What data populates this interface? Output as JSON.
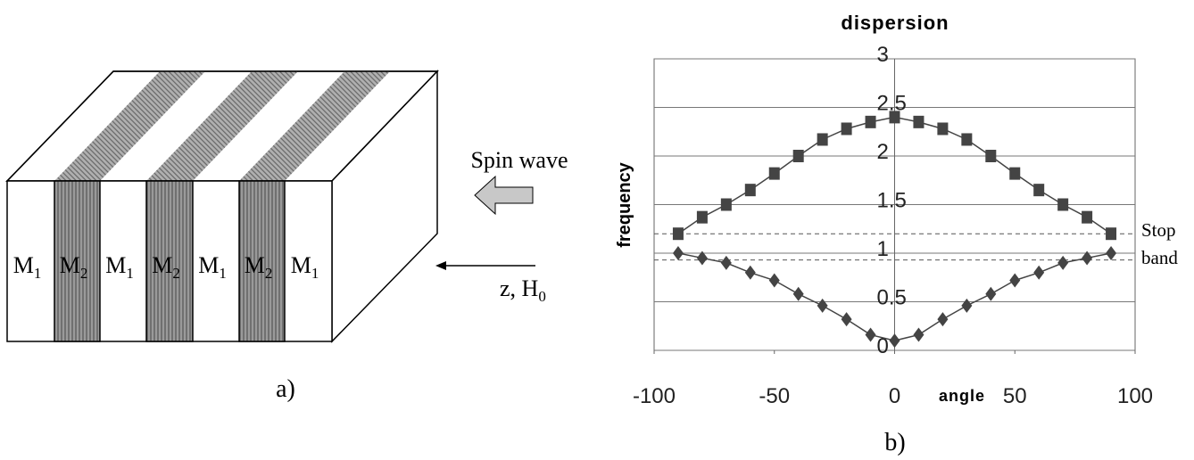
{
  "diagram": {
    "layers": [
      {
        "text": "M",
        "sub": "1"
      },
      {
        "text": "M",
        "sub": "2"
      },
      {
        "text": "M",
        "sub": "1"
      },
      {
        "text": "M",
        "sub": "2"
      },
      {
        "text": "M",
        "sub": "1"
      },
      {
        "text": "M",
        "sub": "2"
      },
      {
        "text": "M",
        "sub": "1"
      }
    ],
    "wave_label": "Spin wave",
    "field_label": {
      "text": "z, H",
      "sub": "0"
    },
    "caption": "a)"
  },
  "chart_data": {
    "type": "line",
    "title": "dispersion",
    "x_label": "angle",
    "y_label": "frequency",
    "caption": "b)",
    "x": [
      -90,
      -80,
      -70,
      -60,
      -50,
      -40,
      -30,
      -20,
      -10,
      0,
      10,
      20,
      30,
      40,
      50,
      60,
      70,
      80,
      90
    ],
    "series": [
      {
        "color": "#444444",
        "marker": "square",
        "values": [
          1.2,
          1.37,
          1.5,
          1.65,
          1.82,
          2.0,
          2.17,
          2.28,
          2.35,
          2.4,
          2.35,
          2.28,
          2.17,
          2.0,
          1.82,
          1.65,
          1.5,
          1.37,
          1.2
        ]
      },
      {
        "color": "#444444",
        "marker": "diamond",
        "values": [
          1.0,
          0.95,
          0.9,
          0.8,
          0.72,
          0.58,
          0.46,
          0.32,
          0.16,
          0.1,
          0.16,
          0.32,
          0.46,
          0.58,
          0.72,
          0.8,
          0.9,
          0.95,
          1.0
        ]
      }
    ],
    "reference_lines": [
      1.2,
      0.93
    ],
    "annotations": [
      "Stop",
      "band"
    ],
    "xlim": [
      -100,
      100
    ],
    "xticks": [
      -100,
      -50,
      0,
      50,
      100
    ],
    "ylim": [
      0,
      3
    ],
    "yticks": [
      0,
      0.5,
      1,
      1.5,
      2,
      2.5,
      3
    ],
    "grid": true
  }
}
